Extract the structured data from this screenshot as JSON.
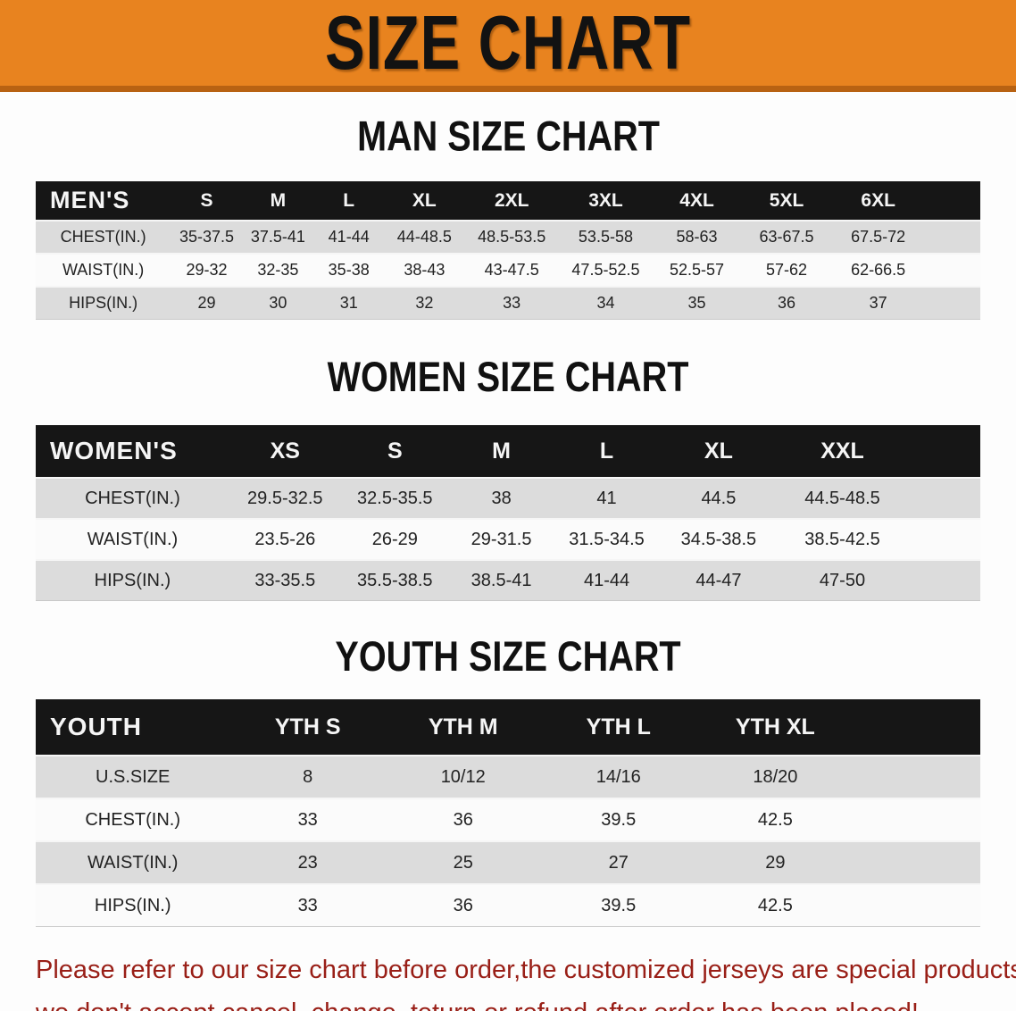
{
  "banner": {
    "title": "SIZE CHART"
  },
  "sections": {
    "men": {
      "heading": "MAN SIZE CHART",
      "group_label": "MEN'S",
      "size_headers": [
        "S",
        "M",
        "L",
        "XL",
        "2XL",
        "3XL",
        "4XL",
        "5XL",
        "6XL"
      ],
      "rows": [
        {
          "label": "CHEST(IN.)",
          "values": [
            "35-37.5",
            "37.5-41",
            "41-44",
            "44-48.5",
            "48.5-53.5",
            "53.5-58",
            "58-63",
            "63-67.5",
            "67.5-72"
          ]
        },
        {
          "label": "WAIST(IN.)",
          "values": [
            "29-32",
            "32-35",
            "35-38",
            "38-43",
            "43-47.5",
            "47.5-52.5",
            "52.5-57",
            "57-62",
            "62-66.5"
          ]
        },
        {
          "label": "HIPS(IN.)",
          "values": [
            "29",
            "30",
            "31",
            "32",
            "33",
            "34",
            "35",
            "36",
            "37"
          ]
        }
      ]
    },
    "women": {
      "heading": "WOMEN SIZE CHART",
      "group_label": "WOMEN'S",
      "size_headers": [
        "XS",
        "S",
        "M",
        "L",
        "XL",
        "XXL"
      ],
      "rows": [
        {
          "label": "CHEST(IN.)",
          "values": [
            "29.5-32.5",
            "32.5-35.5",
            "38",
            "41",
            "44.5",
            "44.5-48.5"
          ]
        },
        {
          "label": "WAIST(IN.)",
          "values": [
            "23.5-26",
            "26-29",
            "29-31.5",
            "31.5-34.5",
            "34.5-38.5",
            "38.5-42.5"
          ]
        },
        {
          "label": "HIPS(IN.)",
          "values": [
            "33-35.5",
            "35.5-38.5",
            "38.5-41",
            "41-44",
            "44-47",
            "47-50"
          ]
        }
      ]
    },
    "youth": {
      "heading": "YOUTH SIZE CHART",
      "group_label": "YOUTH",
      "size_headers": [
        "YTH S",
        "YTH M",
        "YTH L",
        "YTH XL"
      ],
      "rows": [
        {
          "label": "U.S.SIZE",
          "values": [
            "8",
            "10/12",
            "14/16",
            "18/20"
          ]
        },
        {
          "label": "CHEST(IN.)",
          "values": [
            "33",
            "36",
            "39.5",
            "42.5"
          ]
        },
        {
          "label": "WAIST(IN.)",
          "values": [
            "23",
            "25",
            "27",
            "29"
          ]
        },
        {
          "label": "HIPS(IN.)",
          "values": [
            "33",
            "36",
            "39.5",
            "42.5"
          ]
        }
      ]
    }
  },
  "note": {
    "line1": "Please refer to our size chart before order,the customized jerseys are special products,",
    "line2": "we don't accept cancel, change, teturn or refund after order has been placed!"
  },
  "colors": {
    "banner_bg": "#e8831f",
    "banner_edge": "#b86212",
    "header_bg": "#161616",
    "row_gray": "#dcdcdc",
    "row_white": "#fbfbfb",
    "note_red": "#991f17"
  }
}
